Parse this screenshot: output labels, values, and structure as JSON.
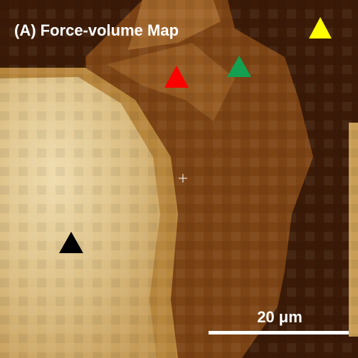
{
  "panel": {
    "title": "(A) Force-volume Map",
    "scale_bar_label": "20 μm"
  }
}
